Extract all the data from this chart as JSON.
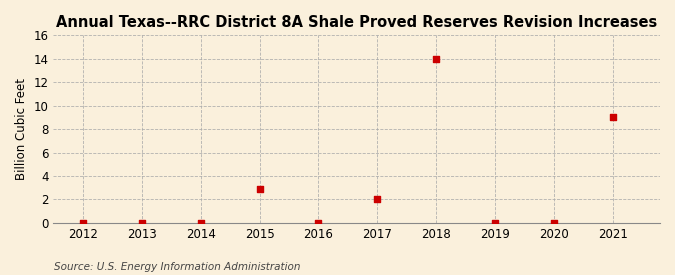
{
  "title": "Annual Texas--RRC District 8A Shale Proved Reserves Revision Increases",
  "ylabel": "Billion Cubic Feet",
  "source": "Source: U.S. Energy Information Administration",
  "x": [
    2012,
    2013,
    2014,
    2015,
    2016,
    2017,
    2018,
    2019,
    2020,
    2021
  ],
  "y": [
    0.0,
    0.0,
    0.0,
    2.9,
    0.0,
    2.0,
    14.0,
    0.0,
    0.0,
    9.0
  ],
  "xlim": [
    2011.5,
    2021.8
  ],
  "ylim": [
    0,
    16
  ],
  "yticks": [
    0,
    2,
    4,
    6,
    8,
    10,
    12,
    14,
    16
  ],
  "xticks": [
    2012,
    2013,
    2014,
    2015,
    2016,
    2017,
    2018,
    2019,
    2020,
    2021
  ],
  "marker_color": "#cc0000",
  "marker": "s",
  "marker_size": 4,
  "background_color": "#faf0dc",
  "grid_color": "#aaaaaa",
  "title_fontsize": 10.5,
  "label_fontsize": 8.5,
  "tick_fontsize": 8.5,
  "source_fontsize": 7.5
}
